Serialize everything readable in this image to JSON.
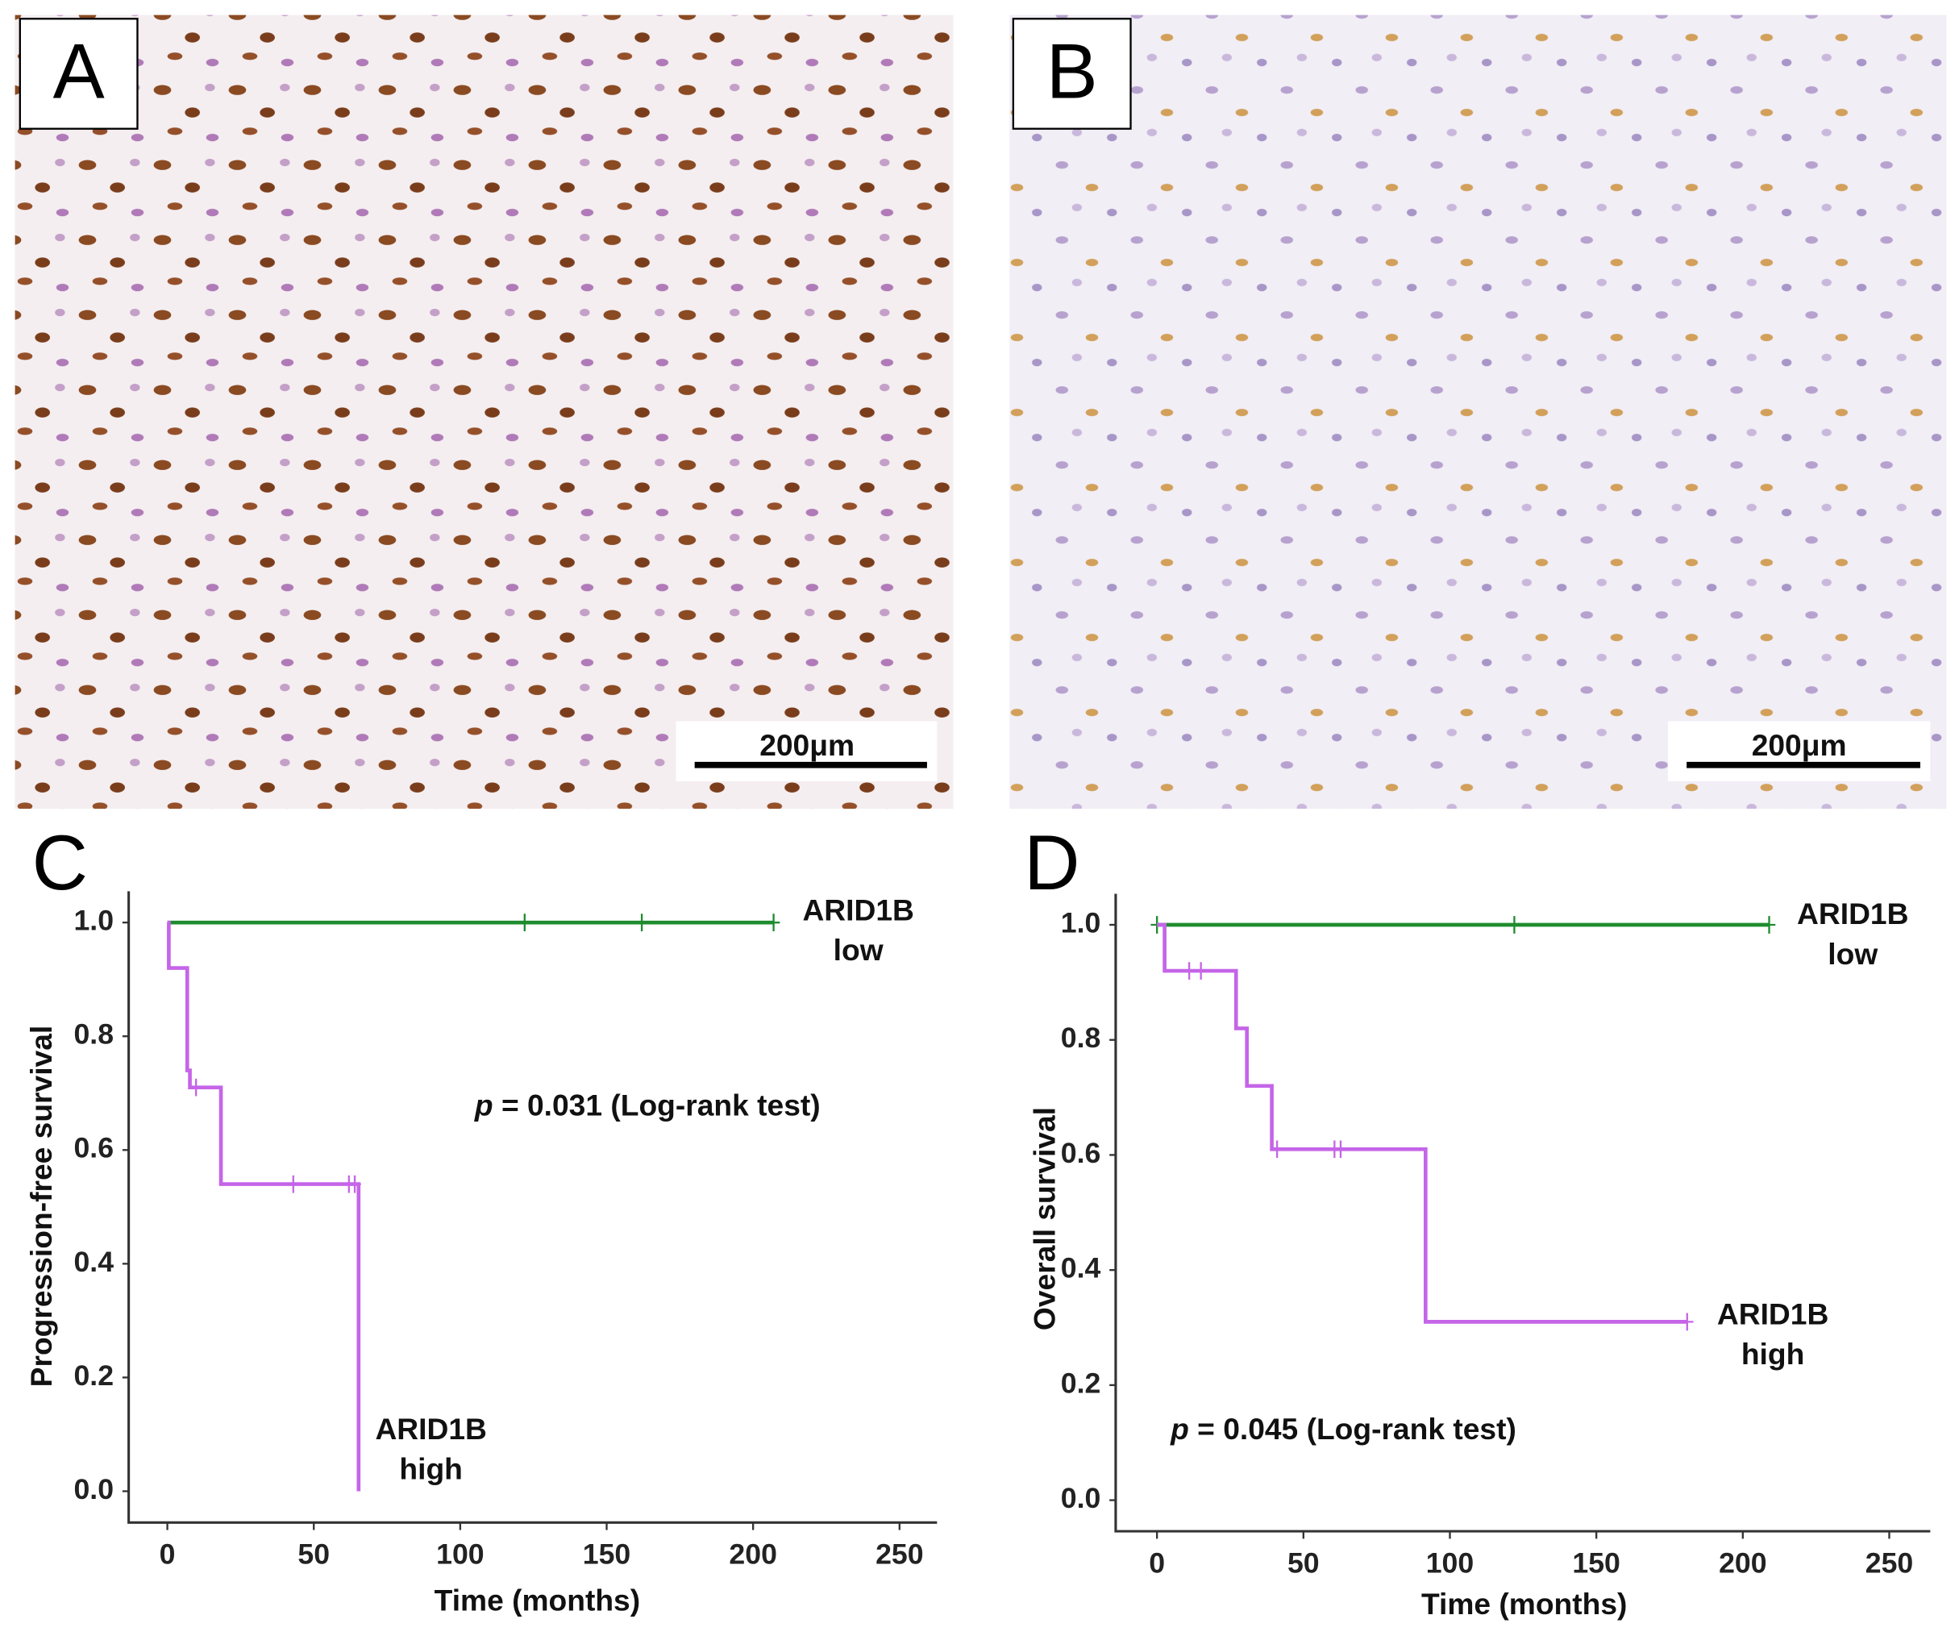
{
  "images": [
    {
      "label": "A",
      "scale_bar": "200μm"
    },
    {
      "label": "B",
      "scale_bar": "200μm"
    }
  ],
  "chart_data": [
    {
      "type": "step",
      "panel": "C",
      "ylabel": "Progression-free survival",
      "xlabel": "Time (months)",
      "xlim": [
        -13.2,
        262.8
      ],
      "ylim": [
        -0.055,
        1.055
      ],
      "xticks": [
        0,
        50,
        100,
        150,
        200,
        250
      ],
      "yticks": [
        {
          "value": 0,
          "label": "0.0"
        },
        {
          "value": 0.2,
          "label": "0.2"
        },
        {
          "value": 0.4,
          "label": "0.4"
        },
        {
          "value": 0.6,
          "label": "0.6"
        },
        {
          "value": 0.8,
          "label": "0.8"
        },
        {
          "value": 1,
          "label": "1.0"
        }
      ],
      "p_label": {
        "italic": "p",
        "text": "= 0.031 (Log-rank test)"
      },
      "series": [
        {
          "name_lines": [
            "ARID1B",
            "low"
          ],
          "color": "#1e8c2e",
          "x": [
            0,
            207
          ],
          "values": [
            1,
            1
          ],
          "censored": [
            122,
            162,
            207
          ]
        },
        {
          "name_lines": [
            "ARID1B",
            "high"
          ],
          "color": "#c565e8",
          "x": [
            0,
            0.5,
            6.8,
            7.7,
            18.3,
            65.3
          ],
          "values": [
            1,
            0.92,
            0.74,
            0.71,
            0.54,
            0
          ],
          "censored": [
            9.8,
            43,
            62,
            64
          ]
        }
      ]
    },
    {
      "type": "step",
      "panel": "D",
      "ylabel": "Overall survival",
      "xlabel": "Time (months)",
      "xlim": [
        -14.1,
        264
      ],
      "ylim": [
        -0.054,
        1.054
      ],
      "xticks": [
        0,
        50,
        100,
        150,
        200,
        250
      ],
      "yticks": [
        {
          "value": 0,
          "label": "0.0"
        },
        {
          "value": 0.2,
          "label": "0.2"
        },
        {
          "value": 0.4,
          "label": "0.4"
        },
        {
          "value": 0.6,
          "label": "0.6"
        },
        {
          "value": 0.8,
          "label": "0.8"
        },
        {
          "value": 1,
          "label": "1.0"
        }
      ],
      "p_label": {
        "italic": "p",
        "text": "= 0.045 (Log-rank test)"
      },
      "series": [
        {
          "name_lines": [
            "ARID1B",
            "low"
          ],
          "color": "#1e8c2e",
          "x": [
            0,
            209
          ],
          "values": [
            1,
            1
          ],
          "censored": [
            0,
            122,
            209
          ]
        },
        {
          "name_lines": [
            "ARID1B",
            "high"
          ],
          "color": "#c565e8",
          "x": [
            0,
            2.6,
            27,
            30.7,
            39.2,
            91.7,
            181
          ],
          "values": [
            1,
            0.92,
            0.82,
            0.72,
            0.61,
            0.31,
            0.31
          ],
          "censored": [
            11,
            15,
            41,
            60.6,
            62.7,
            181
          ]
        }
      ]
    }
  ]
}
